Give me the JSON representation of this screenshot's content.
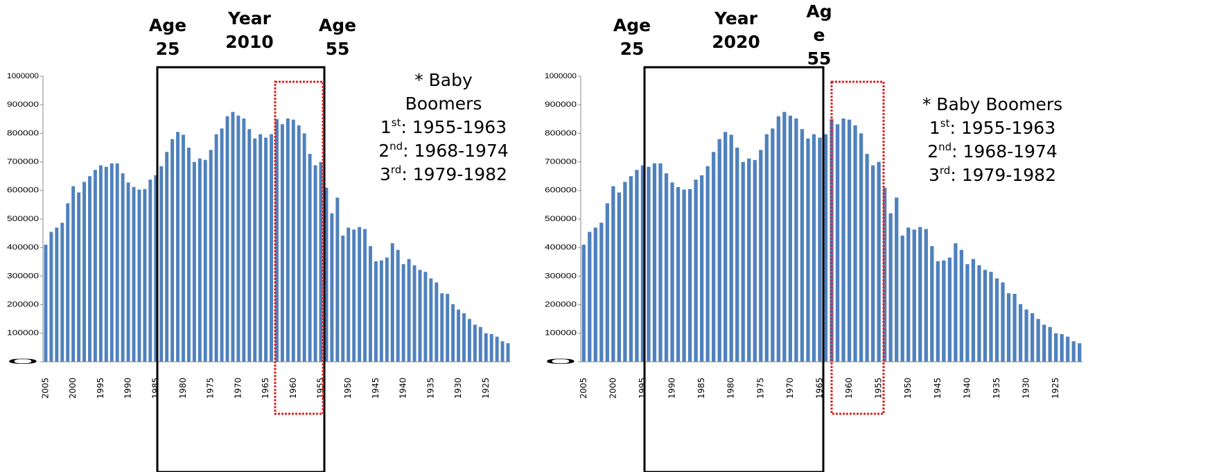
{
  "chart_data": [
    {
      "type": "bar",
      "categories": [
        "2005",
        null,
        null,
        null,
        null,
        "2000",
        null,
        null,
        null,
        null,
        "1995",
        null,
        null,
        null,
        null,
        "1990",
        null,
        null,
        null,
        null,
        "1985",
        null,
        null,
        null,
        null,
        "1980",
        null,
        null,
        null,
        null,
        "1975",
        null,
        null,
        null,
        null,
        "1970",
        null,
        null,
        null,
        null,
        "1965",
        null,
        null,
        null,
        null,
        "1960",
        null,
        null,
        null,
        null,
        "1955",
        null,
        null,
        null,
        null,
        "1950",
        null,
        null,
        null,
        null,
        "1945",
        null,
        null,
        null,
        null,
        "1940",
        null,
        null,
        null,
        null,
        "1935",
        null,
        null,
        null,
        null,
        "1930",
        null,
        null,
        null,
        null,
        "1925",
        null,
        null,
        null,
        null
      ],
      "values": [
        410000,
        455000,
        470000,
        487000,
        555000,
        615000,
        593000,
        630000,
        650000,
        672000,
        688000,
        683000,
        695000,
        695000,
        660000,
        628000,
        612000,
        603000,
        605000,
        638000,
        653000,
        685000,
        735000,
        780000,
        805000,
        795000,
        750000,
        700000,
        712000,
        707000,
        742000,
        797000,
        817000,
        860000,
        875000,
        862000,
        852000,
        815000,
        782000,
        797000,
        785000,
        797000,
        850000,
        832000,
        852000,
        848000,
        828000,
        800000,
        728000,
        688000,
        700000,
        610000,
        520000,
        575000,
        442000,
        470000,
        463000,
        472000,
        465000,
        405000,
        352000,
        355000,
        365000,
        415000,
        392000,
        342000,
        360000,
        338000,
        322000,
        315000,
        292000,
        278000,
        240000,
        238000,
        202000,
        183000,
        170000,
        150000,
        130000,
        122000,
        100000,
        97000,
        88000,
        72000,
        65000
      ],
      "color": "#4f81bd",
      "ylim": [
        0,
        1000000
      ],
      "yticks": [
        0,
        100000,
        200000,
        300000,
        400000,
        500000,
        600000,
        700000,
        800000,
        900000,
        1000000
      ],
      "annotations": {
        "age_start": [
          "Age",
          "25"
        ],
        "year": [
          "Year",
          "2010"
        ],
        "age_end": [
          "Age",
          "55"
        ]
      },
      "boomers": {
        "title": [
          "* Baby",
          "Boomers"
        ],
        "items": [
          {
            "n": "1",
            "sup": "st",
            "range": ":   1955-1963"
          },
          {
            "n": "2",
            "sup": "nd",
            "range": ": 1968-1974"
          },
          {
            "n": "3",
            "sup": "rd",
            "range": ": 1979-1982"
          }
        ]
      }
    },
    {
      "type": "bar",
      "categories": [
        "2005",
        null,
        null,
        null,
        null,
        "2000",
        null,
        null,
        null,
        null,
        "1995",
        null,
        null,
        null,
        null,
        "1990",
        null,
        null,
        null,
        null,
        "1985",
        null,
        null,
        null,
        null,
        "1980",
        null,
        null,
        null,
        null,
        "1975",
        null,
        null,
        null,
        null,
        "1970",
        null,
        null,
        null,
        null,
        "1965",
        null,
        null,
        null,
        null,
        "1960",
        null,
        null,
        null,
        null,
        "1955",
        null,
        null,
        null,
        null,
        "1950",
        null,
        null,
        null,
        null,
        "1945",
        null,
        null,
        null,
        null,
        "1940",
        null,
        null,
        null,
        null,
        "1935",
        null,
        null,
        null,
        null,
        "1930",
        null,
        null,
        null,
        null,
        "1925",
        null,
        null,
        null,
        null
      ],
      "values": [
        410000,
        455000,
        470000,
        487000,
        555000,
        615000,
        593000,
        630000,
        650000,
        672000,
        688000,
        683000,
        695000,
        695000,
        660000,
        628000,
        612000,
        603000,
        605000,
        638000,
        653000,
        685000,
        735000,
        780000,
        805000,
        795000,
        750000,
        700000,
        712000,
        707000,
        742000,
        797000,
        817000,
        860000,
        875000,
        862000,
        852000,
        815000,
        782000,
        797000,
        785000,
        797000,
        850000,
        832000,
        852000,
        848000,
        828000,
        800000,
        728000,
        688000,
        700000,
        610000,
        520000,
        575000,
        442000,
        470000,
        463000,
        472000,
        465000,
        405000,
        352000,
        355000,
        365000,
        415000,
        392000,
        342000,
        360000,
        338000,
        322000,
        315000,
        292000,
        278000,
        240000,
        238000,
        202000,
        183000,
        170000,
        150000,
        130000,
        122000,
        100000,
        97000,
        88000,
        72000,
        65000
      ],
      "color": "#4f81bd",
      "ylim": [
        0,
        1000000
      ],
      "yticks": [
        0,
        100000,
        200000,
        300000,
        400000,
        500000,
        600000,
        700000,
        800000,
        900000,
        1000000
      ],
      "annotations": {
        "age_start": [
          "Age",
          "25"
        ],
        "year": [
          "Year",
          "2020"
        ],
        "age_end": [
          "Ag",
          "e",
          "55"
        ]
      },
      "boomers": {
        "title": [
          "* Baby Boomers"
        ],
        "items": [
          {
            "n": "1",
            "sup": "st",
            "range": ":   1955-1963"
          },
          {
            "n": "2",
            "sup": "nd",
            "range": ": 1968-1974"
          },
          {
            "n": "3",
            "sup": "rd",
            "range": ": 1979-1982"
          }
        ]
      }
    }
  ]
}
